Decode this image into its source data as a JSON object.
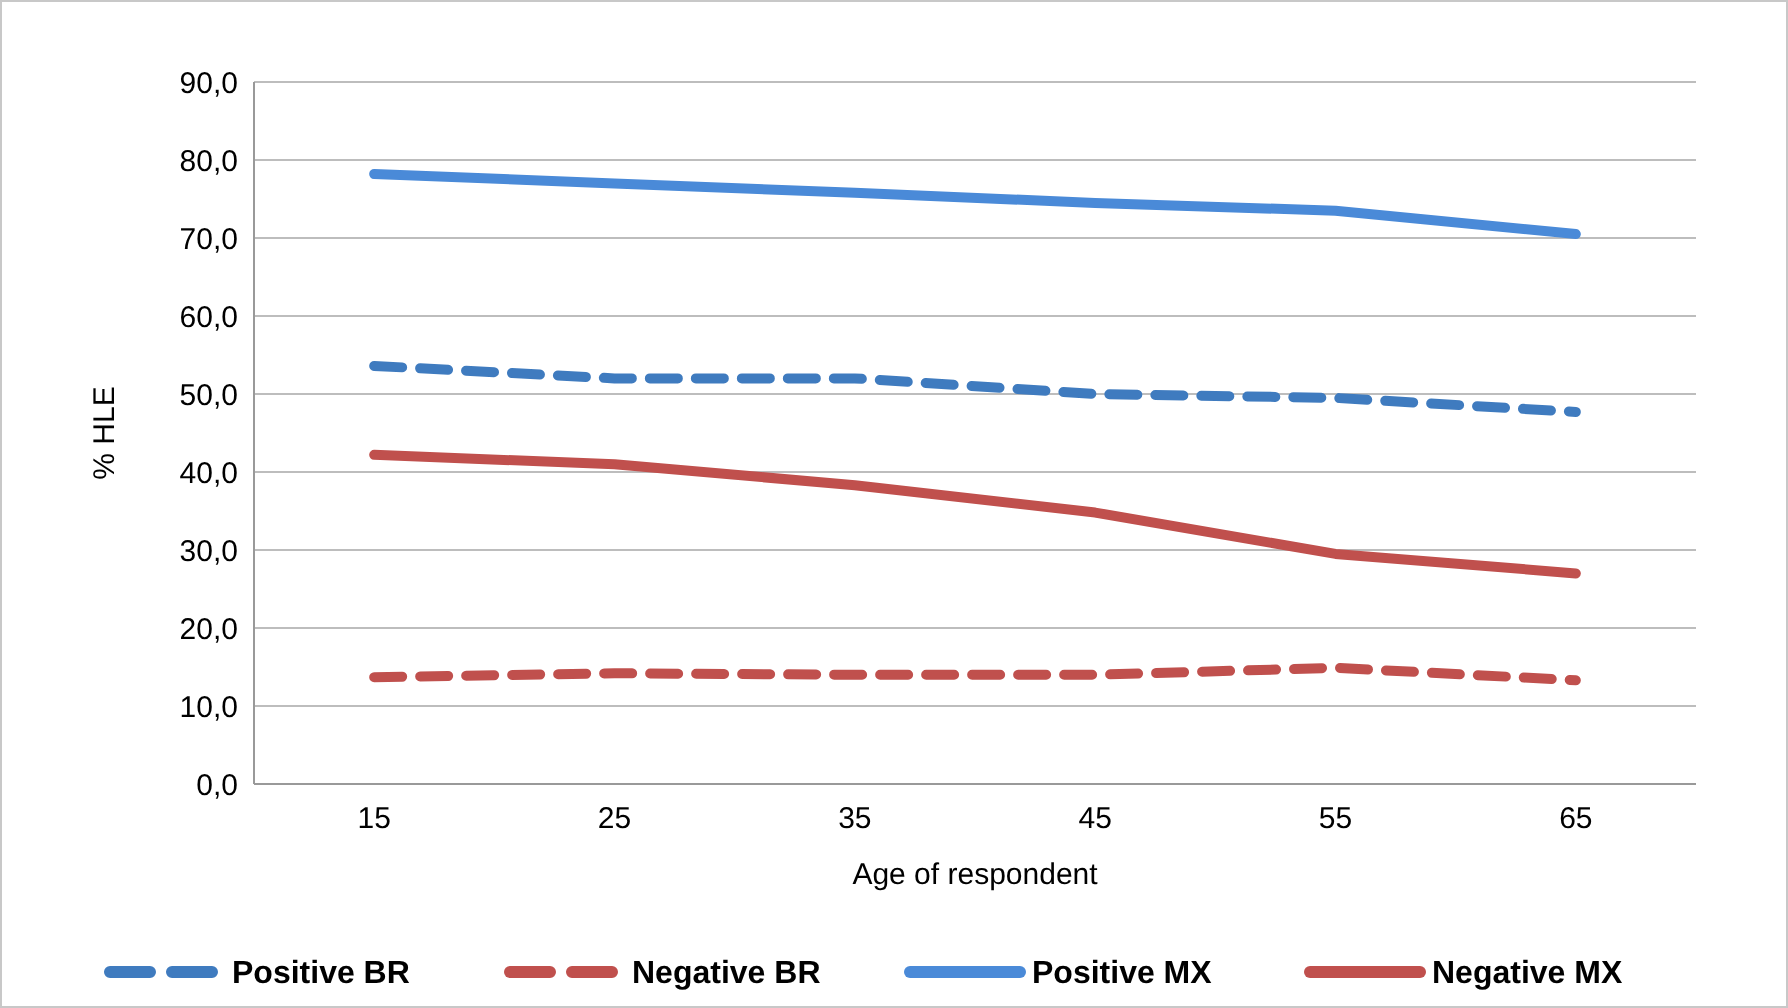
{
  "chart_data": {
    "type": "line",
    "xlabel": "Age of respondent",
    "ylabel": "% HLE",
    "categories": [
      "15",
      "25",
      "35",
      "45",
      "55",
      "65"
    ],
    "ylim": [
      0,
      90
    ],
    "yticks": [
      {
        "value": 0,
        "label": "0,0"
      },
      {
        "value": 10,
        "label": "10,0"
      },
      {
        "value": 20,
        "label": "20,0"
      },
      {
        "value": 30,
        "label": "30,0"
      },
      {
        "value": 40,
        "label": "40,0"
      },
      {
        "value": 50,
        "label": "50,0"
      },
      {
        "value": 60,
        "label": "60,0"
      },
      {
        "value": 70,
        "label": "70,0"
      },
      {
        "value": 80,
        "label": "80,0"
      },
      {
        "value": 90,
        "label": "90,0"
      }
    ],
    "grid": "y",
    "legend": "bottom",
    "marker": "none",
    "series": [
      {
        "name": "Positive BR",
        "color": "#3f7bbf",
        "line_style": "dashed",
        "values": [
          53.6,
          52.0,
          52.0,
          50.0,
          49.5,
          47.7
        ]
      },
      {
        "name": "Negative BR",
        "color": "#c0504d",
        "line_style": "dashed",
        "values": [
          13.7,
          14.2,
          14.0,
          14.0,
          14.9,
          13.3
        ]
      },
      {
        "name": "Positive MX",
        "color": "#4a8ad8",
        "line_style": "solid",
        "values": [
          78.2,
          77.0,
          75.8,
          74.5,
          73.5,
          70.5
        ]
      },
      {
        "name": "Negative MX",
        "color": "#c0504d",
        "line_style": "solid",
        "values": [
          42.2,
          41.0,
          38.3,
          34.8,
          29.5,
          27.0
        ]
      }
    ]
  }
}
